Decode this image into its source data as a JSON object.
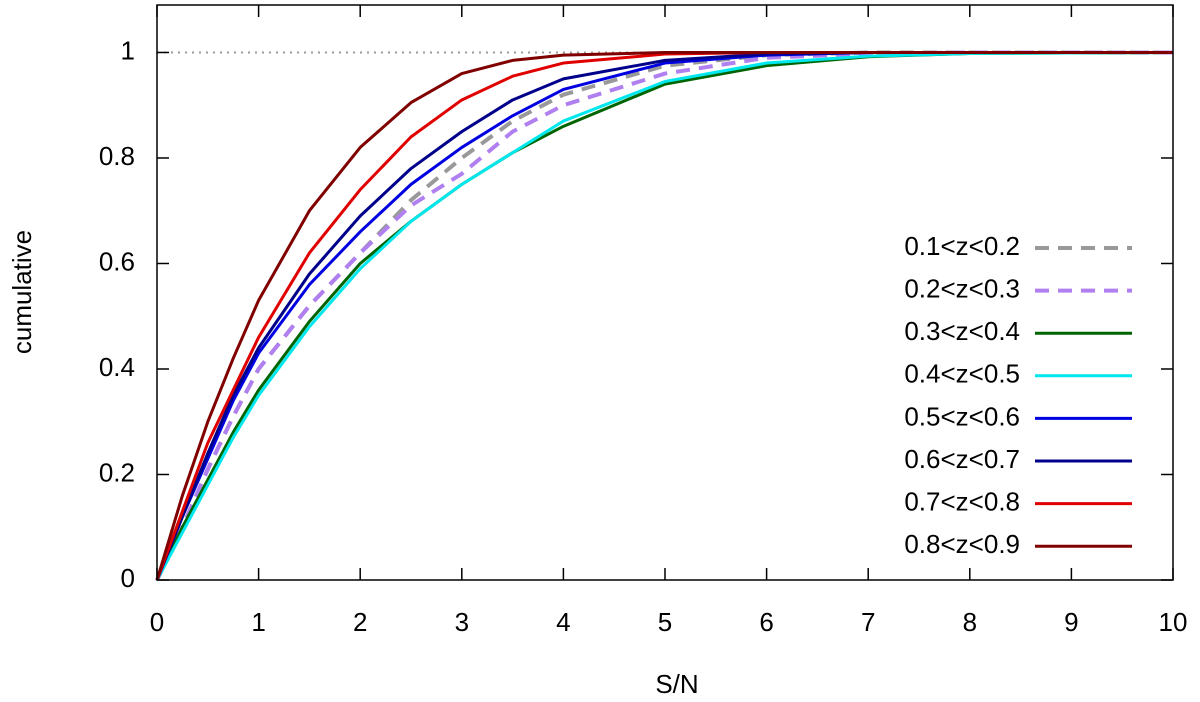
{
  "chart_data": {
    "type": "line",
    "xlabel": "S/N",
    "ylabel": "cumulative",
    "x": [
      0,
      0.25,
      0.5,
      0.75,
      1,
      1.5,
      2,
      2.5,
      3,
      3.5,
      4,
      5,
      6,
      7,
      8,
      10
    ],
    "series": [
      {
        "name": "0.1<z<0.2",
        "color": "#999999",
        "dashed": true,
        "values": [
          0,
          0.1,
          0.21,
          0.31,
          0.4,
          0.52,
          0.62,
          0.72,
          0.8,
          0.87,
          0.92,
          0.975,
          0.995,
          1,
          1,
          1
        ]
      },
      {
        "name": "0.2<z<0.3",
        "color": "#b080f0",
        "dashed": true,
        "values": [
          0,
          0.1,
          0.21,
          0.31,
          0.4,
          0.52,
          0.62,
          0.71,
          0.77,
          0.85,
          0.9,
          0.96,
          0.99,
          0.998,
          1,
          1
        ]
      },
      {
        "name": "0.3<z<0.4",
        "color": "#006400",
        "dashed": false,
        "values": [
          0,
          0.1,
          0.19,
          0.28,
          0.36,
          0.49,
          0.6,
          0.68,
          0.75,
          0.81,
          0.86,
          0.94,
          0.975,
          0.992,
          0.998,
          1
        ]
      },
      {
        "name": "0.4<z<0.5",
        "color": "#00e8ee",
        "dashed": false,
        "values": [
          0,
          0.09,
          0.18,
          0.27,
          0.35,
          0.48,
          0.59,
          0.68,
          0.75,
          0.81,
          0.87,
          0.945,
          0.98,
          0.993,
          0.998,
          1
        ]
      },
      {
        "name": "0.5<z<0.6",
        "color": "#0000e0",
        "dashed": false,
        "values": [
          0,
          0.12,
          0.23,
          0.34,
          0.43,
          0.56,
          0.66,
          0.75,
          0.82,
          0.88,
          0.93,
          0.98,
          0.995,
          1,
          1,
          1
        ]
      },
      {
        "name": "0.6<z<0.7",
        "color": "#00008b",
        "dashed": false,
        "values": [
          0,
          0.12,
          0.24,
          0.35,
          0.44,
          0.58,
          0.69,
          0.78,
          0.85,
          0.91,
          0.95,
          0.985,
          0.997,
          1,
          1,
          1
        ]
      },
      {
        "name": "0.7<z<0.8",
        "color": "#e00000",
        "dashed": false,
        "values": [
          0,
          0.13,
          0.26,
          0.36,
          0.46,
          0.62,
          0.74,
          0.84,
          0.91,
          0.955,
          0.98,
          0.997,
          1,
          1,
          1,
          1
        ]
      },
      {
        "name": "0.8<z<0.9",
        "color": "#800000",
        "dashed": false,
        "values": [
          0,
          0.16,
          0.3,
          0.42,
          0.53,
          0.7,
          0.82,
          0.905,
          0.96,
          0.985,
          0.995,
          1,
          1,
          1,
          1,
          1
        ]
      }
    ],
    "reference_line": 1,
    "xlim": [
      0,
      10
    ],
    "ylim": [
      0,
      1.09
    ],
    "xticks": [
      0,
      1,
      2,
      3,
      4,
      5,
      6,
      7,
      8,
      9,
      10
    ],
    "yticks": [
      0,
      0.2,
      0.4,
      0.6,
      0.8,
      1
    ],
    "legend": "right"
  }
}
